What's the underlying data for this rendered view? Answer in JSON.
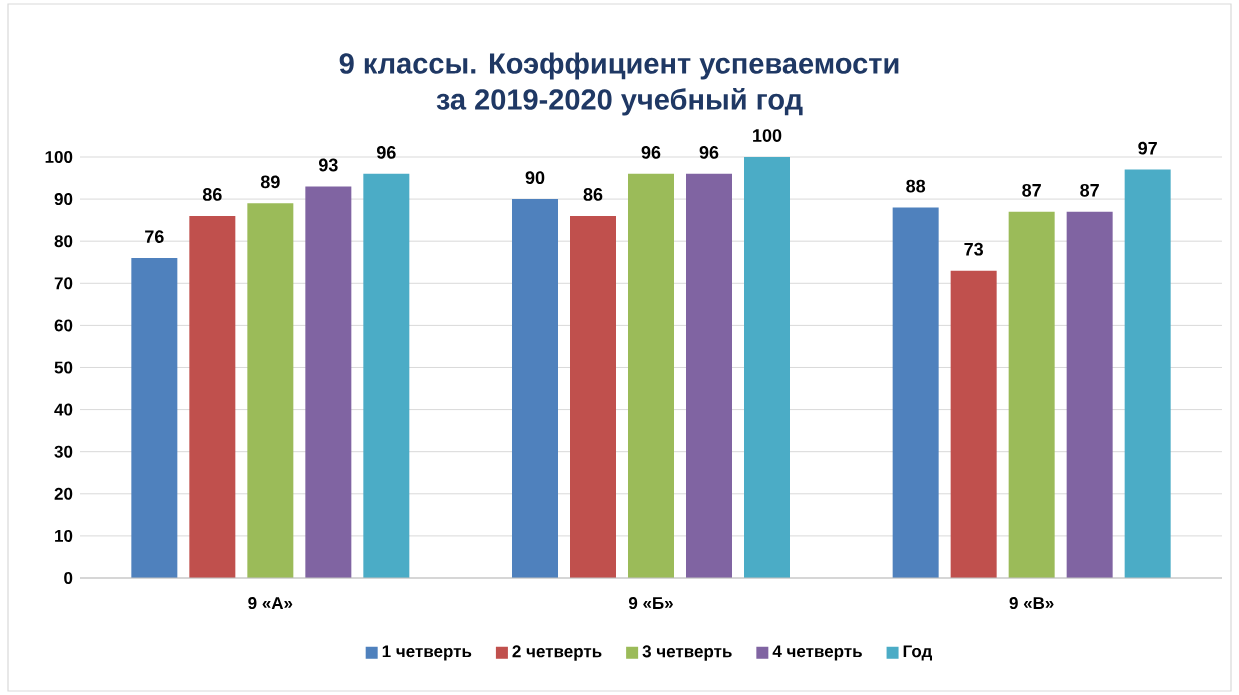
{
  "chart_data": {
    "type": "bar",
    "title": "9 классы. Коэффициент успеваемости\nза 2019-2020 учебный год",
    "categories": [
      "9 «А»",
      "9 «Б»",
      "9 «В»"
    ],
    "series": [
      {
        "name": "1 четверть",
        "color": "#4f81bd",
        "values": [
          76,
          90,
          88
        ]
      },
      {
        "name": "2 четверть",
        "color": "#c0504d",
        "values": [
          86,
          86,
          73
        ]
      },
      {
        "name": "3 четверть",
        "color": "#9bbb59",
        "values": [
          89,
          96,
          87
        ]
      },
      {
        "name": "4 четверть",
        "color": "#8064a2",
        "values": [
          93,
          96,
          87
        ]
      },
      {
        "name": "Год",
        "color": "#4bacc6",
        "values": [
          96,
          100,
          97
        ]
      }
    ],
    "ylim": [
      0,
      100
    ],
    "yticks": [
      0,
      10,
      20,
      30,
      40,
      50,
      60,
      70,
      80,
      90,
      100
    ],
    "grid": "y",
    "legend": "bottom",
    "data_labels": true
  }
}
